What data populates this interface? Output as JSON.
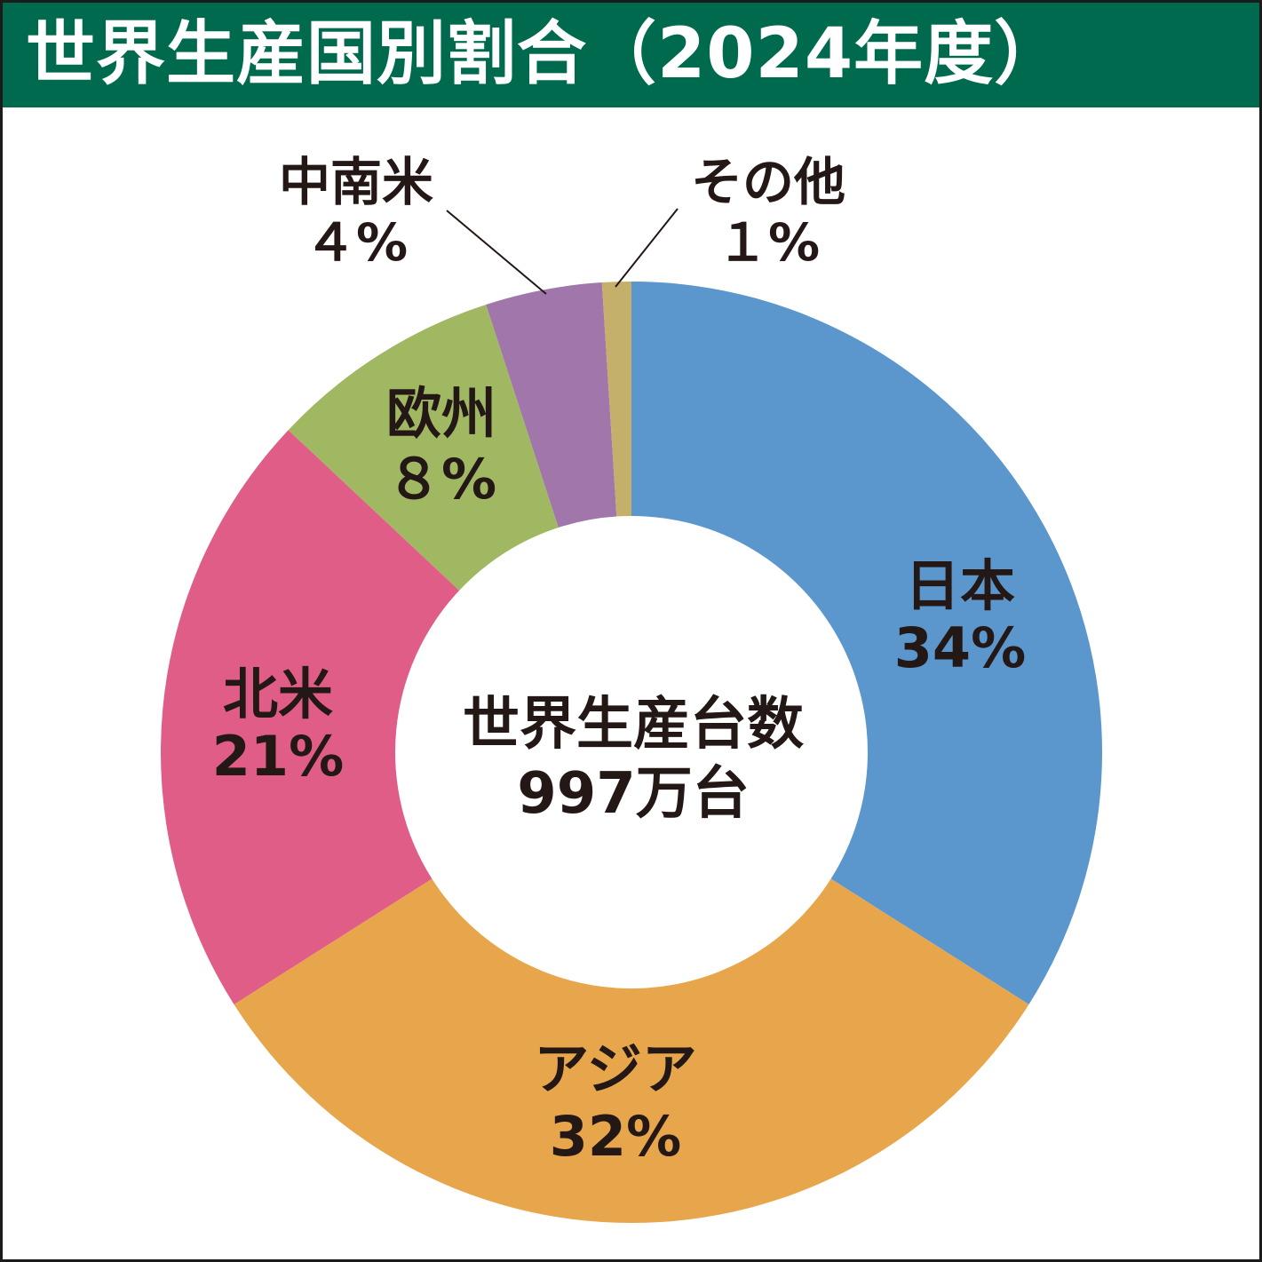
{
  "chart_data": {
    "type": "pie",
    "title": "世界生産国別割合（2024年度）",
    "center_label": {
      "line1": "世界生産台数",
      "line2": "997万台"
    },
    "categories": [
      "日本",
      "アジア",
      "北米",
      "欧州",
      "中南米",
      "その他"
    ],
    "values": [
      34,
      32,
      21,
      8,
      4,
      1
    ],
    "value_labels": [
      "34%",
      "32%",
      "21%",
      "８%",
      "４%",
      "１%"
    ],
    "unit": "%",
    "colors": [
      "#5b97cc",
      "#e8a64c",
      "#df5d87",
      "#a1b863",
      "#a176aa",
      "#c5b06b"
    ],
    "donut": true,
    "start_angle_deg": 0,
    "direction": "clockwise",
    "callout_categories": [
      "中南米",
      "その他"
    ]
  },
  "colors": {
    "title_bar": "#006a4f",
    "title_text": "#ffffff",
    "label_text": "#231815"
  }
}
